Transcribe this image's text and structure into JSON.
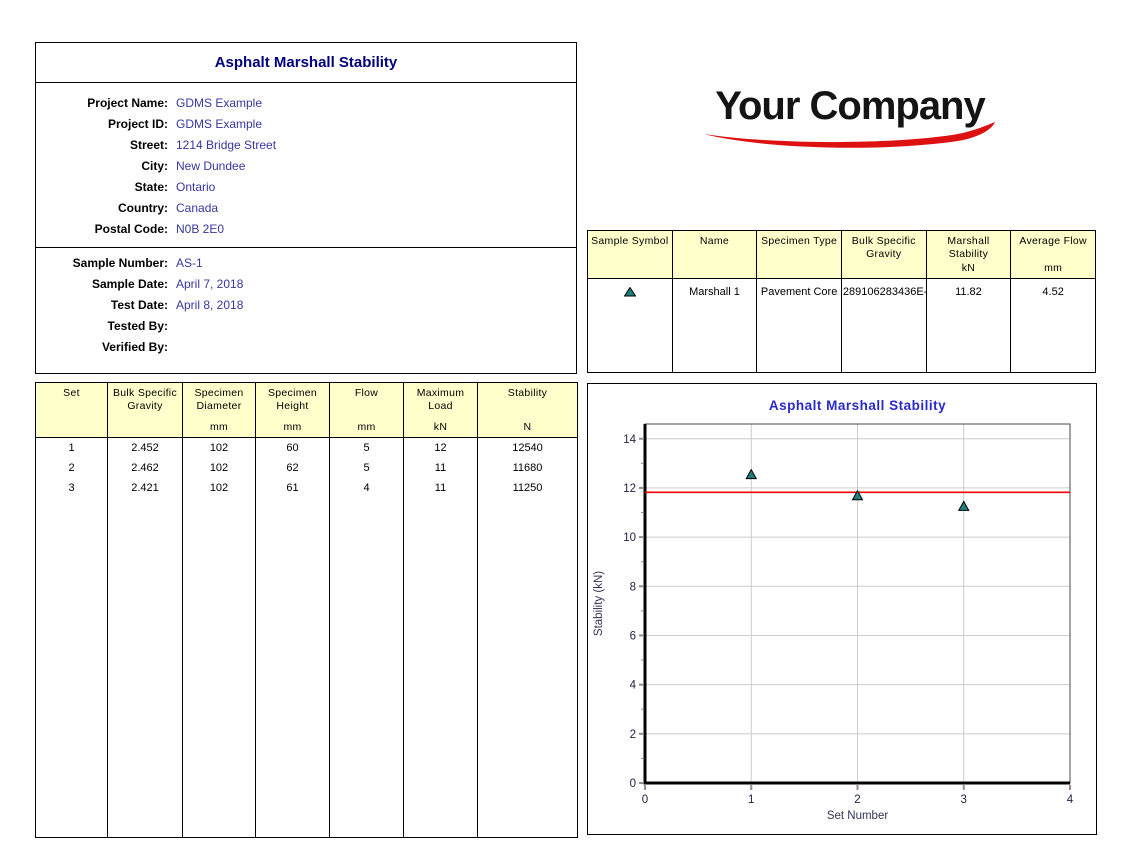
{
  "header": {
    "title": "Asphalt Marshall Stability"
  },
  "logo": {
    "text": "Your Company",
    "swoosh_color": "#dd1111"
  },
  "project_info": {
    "fields": [
      {
        "label": "Project Name:",
        "value": "GDMS Example"
      },
      {
        "label": "Project ID:",
        "value": "GDMS Example"
      },
      {
        "label": "Street:",
        "value": "1214 Bridge Street"
      },
      {
        "label": "City:",
        "value": "New Dundee"
      },
      {
        "label": "State:",
        "value": "Ontario"
      },
      {
        "label": "Country:",
        "value": "Canada"
      },
      {
        "label": "Postal Code:",
        "value": "N0B 2E0"
      }
    ]
  },
  "sample_info": {
    "fields": [
      {
        "label": "Sample Number:",
        "value": "AS-1"
      },
      {
        "label": "Sample Date:",
        "value": "April 7, 2018"
      },
      {
        "label": "Test Date:",
        "value": "April 8, 2018"
      },
      {
        "label": "Tested By:",
        "value": ""
      },
      {
        "label": "Verified By:",
        "value": ""
      }
    ]
  },
  "sample_summary_table": {
    "columns": [
      {
        "title": "Sample Symbol",
        "unit": ""
      },
      {
        "title": "Name",
        "unit": ""
      },
      {
        "title": "Specimen Type",
        "unit": ""
      },
      {
        "title": "Bulk Specific Gravity",
        "unit": ""
      },
      {
        "title": "Marshall Stability",
        "unit": "kN"
      },
      {
        "title": "Average Flow",
        "unit": "mm"
      }
    ],
    "row": {
      "symbol": "teal-triangle",
      "name": "Marshall 1",
      "specimen_type": "Pavement Core",
      "bulk_specific_gravity": "289106283436E-",
      "marshall_stability": "11.82",
      "average_flow": "4.52"
    }
  },
  "results_table": {
    "columns": [
      {
        "title": "Set",
        "unit": ""
      },
      {
        "title": "Bulk Specific Gravity",
        "unit": ""
      },
      {
        "title": "Specimen Diameter",
        "unit": "mm"
      },
      {
        "title": "Specimen Height",
        "unit": "mm"
      },
      {
        "title": "Flow",
        "unit": "mm"
      },
      {
        "title": "Maximum Load",
        "unit": "kN"
      },
      {
        "title": "Stability",
        "unit": "N"
      }
    ],
    "rows": [
      [
        "1",
        "2.452",
        "102",
        "60",
        "5",
        "12",
        "12540"
      ],
      [
        "2",
        "2.462",
        "102",
        "62",
        "5",
        "11",
        "11680"
      ],
      [
        "3",
        "2.421",
        "102",
        "61",
        "4",
        "11",
        "11250"
      ]
    ]
  },
  "chart_data": {
    "type": "scatter",
    "title": "Asphalt Marshall Stability",
    "title_color": "#2a2acc",
    "xlabel": "Set Number",
    "ylabel": "Stability (kN)",
    "xlim": [
      0,
      4
    ],
    "ylim": [
      0,
      14.6
    ],
    "x_major_ticks": [
      0,
      1,
      2,
      3,
      4
    ],
    "y_major_ticks": [
      0,
      2,
      4,
      6,
      8,
      10,
      12,
      14
    ],
    "y_minor_step": 1,
    "grid": true,
    "grid_color": "#cccccc",
    "points": [
      {
        "x": 1,
        "y": 12.54
      },
      {
        "x": 2,
        "y": 11.68
      },
      {
        "x": 3,
        "y": 11.25
      }
    ],
    "avg_line": {
      "y": 11.82,
      "color": "#ee0000"
    },
    "marker": {
      "shape": "triangle",
      "fill": "#1d8080",
      "stroke": "#000000"
    }
  }
}
